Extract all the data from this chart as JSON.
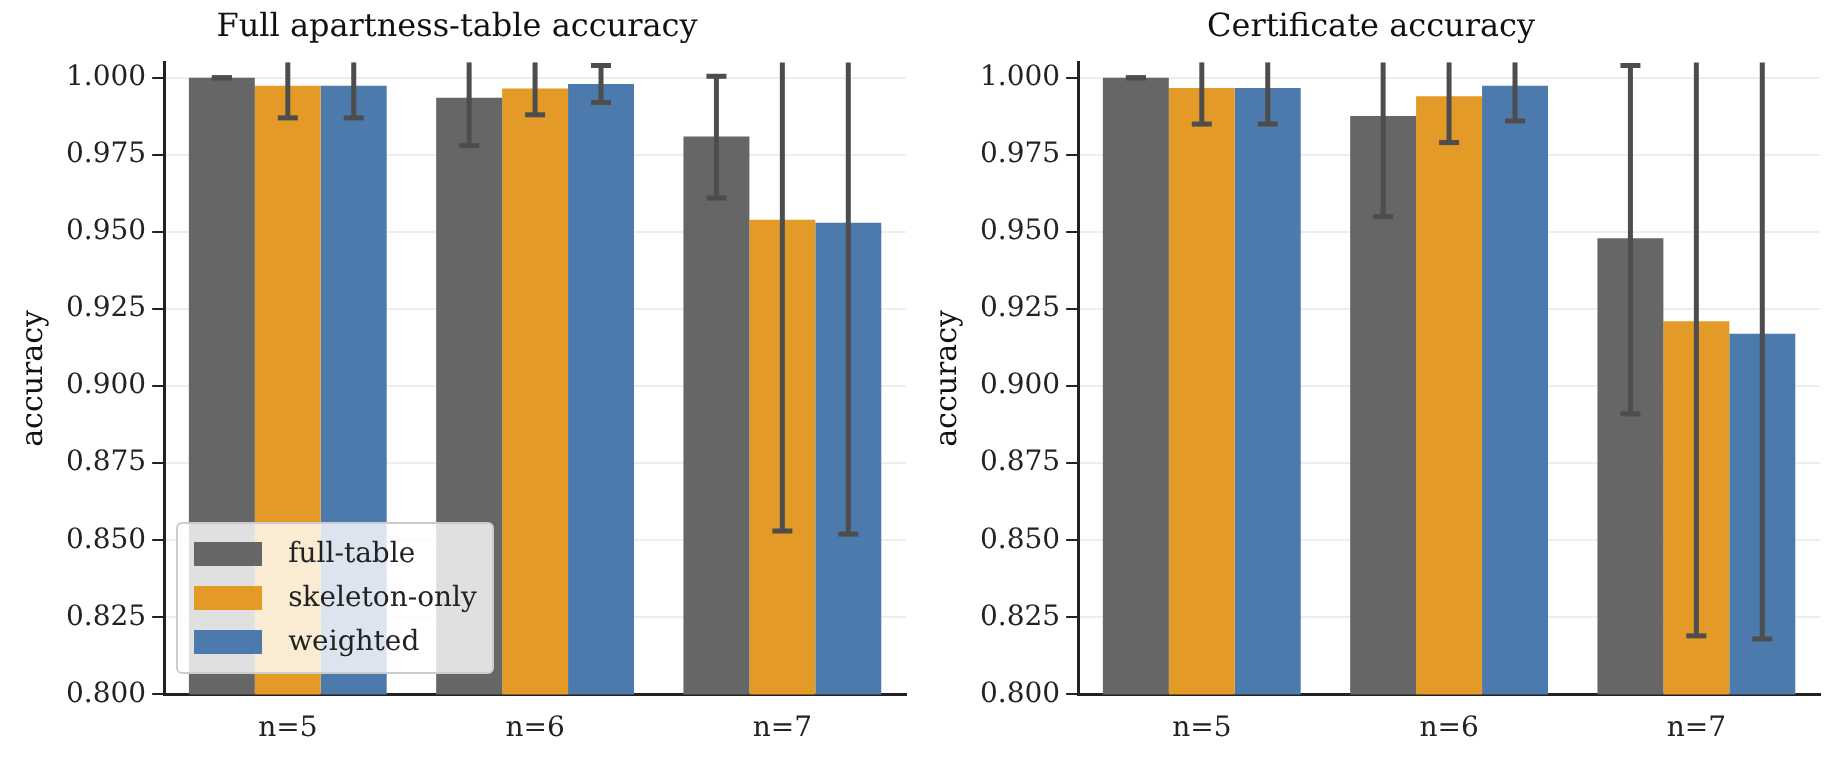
{
  "chart_data": [
    {
      "type": "bar",
      "title": "Full apartness-table accuracy",
      "ylabel": "accuracy",
      "categories": [
        "n=5",
        "n=6",
        "n=7"
      ],
      "ylim": [
        0.8,
        1.005
      ],
      "yticks": [
        {
          "value": 0.8,
          "label": "0.800"
        },
        {
          "value": 0.825,
          "label": "0.825"
        },
        {
          "value": 0.85,
          "label": "0.850"
        },
        {
          "value": 0.875,
          "label": "0.875"
        },
        {
          "value": 0.9,
          "label": "0.900"
        },
        {
          "value": 0.925,
          "label": "0.925"
        },
        {
          "value": 0.95,
          "label": "0.950"
        },
        {
          "value": 0.975,
          "label": "0.975"
        },
        {
          "value": 1.0,
          "label": "1.000"
        }
      ],
      "grid": "y",
      "legend": "bottom left",
      "series": [
        {
          "name": "full-table",
          "color": "#666666",
          "values": [
            1.0,
            0.9935,
            0.981
          ],
          "errors": [
            0,
            [
              0.978,
              1.005
            ],
            [
              0.961,
              1.0005
            ]
          ]
        },
        {
          "name": "skeleton-only",
          "color": "#e39a26",
          "values": [
            0.9974,
            0.9965,
            0.954
          ],
          "errors": [
            [
              0.987,
              1.005
            ],
            [
              0.988,
              1.005
            ],
            [
              0.853,
              1.005
            ]
          ]
        },
        {
          "name": "weighted",
          "color": "#4c7aad",
          "values": [
            0.9974,
            0.998,
            0.953
          ],
          "errors": [
            [
              0.987,
              1.005
            ],
            [
              0.992,
              1.004
            ],
            [
              0.852,
              1.005
            ]
          ]
        }
      ]
    },
    {
      "type": "bar",
      "title": "Certificate accuracy",
      "ylabel": "accuracy",
      "categories": [
        "n=5",
        "n=6",
        "n=7"
      ],
      "ylim": [
        0.8,
        1.005
      ],
      "yticks": [
        {
          "value": 0.8,
          "label": "0.800"
        },
        {
          "value": 0.825,
          "label": "0.825"
        },
        {
          "value": 0.85,
          "label": "0.850"
        },
        {
          "value": 0.875,
          "label": "0.875"
        },
        {
          "value": 0.9,
          "label": "0.900"
        },
        {
          "value": 0.925,
          "label": "0.925"
        },
        {
          "value": 0.95,
          "label": "0.950"
        },
        {
          "value": 0.975,
          "label": "0.975"
        },
        {
          "value": 1.0,
          "label": "1.000"
        }
      ],
      "grid": "y",
      "series": [
        {
          "color": "#666666",
          "values": [
            1.0,
            0.9876,
            0.948
          ],
          "errors": [
            0,
            [
              0.955,
              1.005
            ],
            [
              0.891,
              1.004
            ]
          ]
        },
        {
          "color": "#e39a26",
          "values": [
            0.9967,
            0.994,
            0.921
          ],
          "errors": [
            [
              0.985,
              1.005
            ],
            [
              0.979,
              1.005
            ],
            [
              0.819,
              1.005
            ]
          ]
        },
        {
          "color": "#4c7aad",
          "values": [
            0.9967,
            0.9974,
            0.917
          ],
          "errors": [
            [
              0.985,
              1.005
            ],
            [
              0.986,
              1.005
            ],
            [
              0.818,
              1.005
            ]
          ]
        }
      ]
    }
  ]
}
